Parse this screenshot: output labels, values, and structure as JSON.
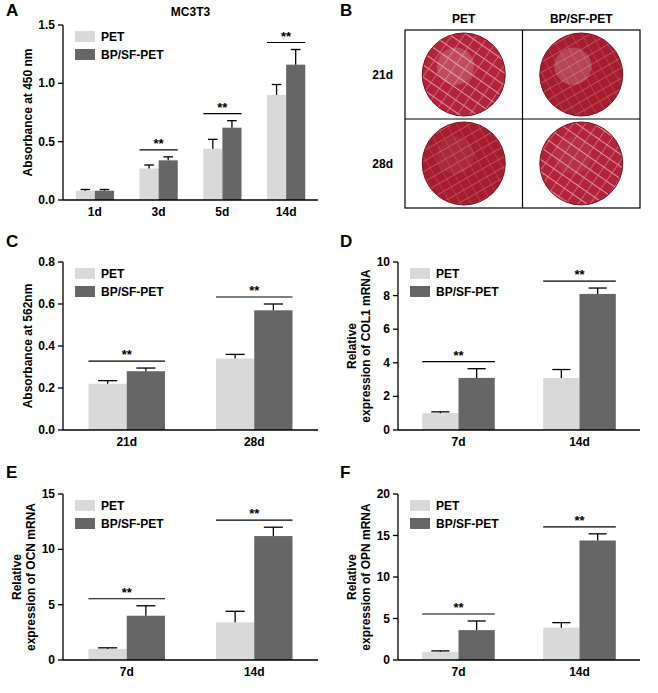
{
  "chart_data": [
    {
      "type": "bar",
      "panel": "A",
      "title": "MC3T3",
      "y_label": "Absorbance at 450 nm",
      "categories": [
        "1d",
        "3d",
        "5d",
        "14d"
      ],
      "series": [
        {
          "name": "PET",
          "color": "#d9d9d9",
          "values": [
            0.08,
            0.27,
            0.44,
            0.9
          ],
          "errors": [
            0.01,
            0.03,
            0.08,
            0.09
          ]
        },
        {
          "name": "BP/SF-PET",
          "color": "#666666",
          "values": [
            0.08,
            0.34,
            0.62,
            1.16
          ],
          "errors": [
            0.01,
            0.03,
            0.06,
            0.13
          ]
        }
      ],
      "significance": [
        null,
        "**",
        "**",
        "**"
      ],
      "ylim": [
        0,
        1.5
      ],
      "yticks": [
        {
          "value": 0,
          "label": "0.0"
        },
        {
          "value": 0.5,
          "label": "0.5"
        },
        {
          "value": 1,
          "label": "1.0"
        },
        {
          "value": 1.5,
          "label": "1.5"
        }
      ],
      "grid": false,
      "legend": "upper left"
    },
    {
      "type": "image",
      "panel": "B",
      "columns": [
        "PET",
        "BP/SF-PET"
      ],
      "rows": [
        "21d",
        "28d"
      ]
    },
    {
      "type": "bar",
      "panel": "C",
      "y_label": "Absorbance at 562nm",
      "categories": [
        "21d",
        "28d"
      ],
      "series": [
        {
          "name": "PET",
          "color": "#d9d9d9",
          "values": [
            0.22,
            0.34
          ],
          "errors": [
            0.015,
            0.02
          ]
        },
        {
          "name": "BP/SF-PET",
          "color": "#666666",
          "values": [
            0.28,
            0.57
          ],
          "errors": [
            0.015,
            0.03
          ]
        }
      ],
      "significance": [
        "**",
        "**"
      ],
      "ylim": [
        0,
        0.8
      ],
      "yticks": [
        {
          "value": 0,
          "label": "0.0"
        },
        {
          "value": 0.2,
          "label": "0.2"
        },
        {
          "value": 0.4,
          "label": "0.4"
        },
        {
          "value": 0.6,
          "label": "0.6"
        },
        {
          "value": 0.8,
          "label": "0.8"
        }
      ],
      "grid": false,
      "legend": "upper left"
    },
    {
      "type": "bar",
      "panel": "D",
      "y_label": "Relative expression of COL1 mRNA",
      "categories": [
        "7d",
        "14d"
      ],
      "series": [
        {
          "name": "PET",
          "color": "#d9d9d9",
          "values": [
            1.0,
            3.1
          ],
          "errors": [
            0.08,
            0.5
          ]
        },
        {
          "name": "BP/SF-PET",
          "color": "#666666",
          "values": [
            3.1,
            8.1
          ],
          "errors": [
            0.55,
            0.35
          ]
        }
      ],
      "significance": [
        "**",
        "**"
      ],
      "ylim": [
        0,
        10
      ],
      "yticks": [
        0,
        2,
        4,
        6,
        8,
        10
      ],
      "grid": false,
      "legend": "upper left"
    },
    {
      "type": "bar",
      "panel": "E",
      "y_label": "Relative expression of OCN mRNA",
      "categories": [
        "7d",
        "14d"
      ],
      "series": [
        {
          "name": "PET",
          "color": "#d9d9d9",
          "values": [
            1.0,
            3.4
          ],
          "errors": [
            0.1,
            1.0
          ]
        },
        {
          "name": "BP/SF-PET",
          "color": "#666666",
          "values": [
            4.0,
            11.2
          ],
          "errors": [
            0.9,
            0.8
          ]
        }
      ],
      "significance": [
        "**",
        "**"
      ],
      "ylim": [
        0,
        15
      ],
      "yticks": [
        0,
        5,
        10,
        15
      ],
      "grid": false,
      "legend": "upper left"
    },
    {
      "type": "bar",
      "panel": "F",
      "y_label": "Relative expression of OPN mRNA",
      "categories": [
        "7d",
        "14d"
      ],
      "series": [
        {
          "name": "PET",
          "color": "#d9d9d9",
          "values": [
            1.0,
            3.9
          ],
          "errors": [
            0.1,
            0.6
          ]
        },
        {
          "name": "BP/SF-PET",
          "color": "#666666",
          "values": [
            3.6,
            14.4
          ],
          "errors": [
            1.1,
            0.8
          ]
        }
      ],
      "significance": [
        "**",
        "**"
      ],
      "ylim": [
        0,
        20
      ],
      "yticks": [
        0,
        5,
        10,
        15,
        20
      ],
      "grid": false,
      "legend": "upper left"
    }
  ]
}
